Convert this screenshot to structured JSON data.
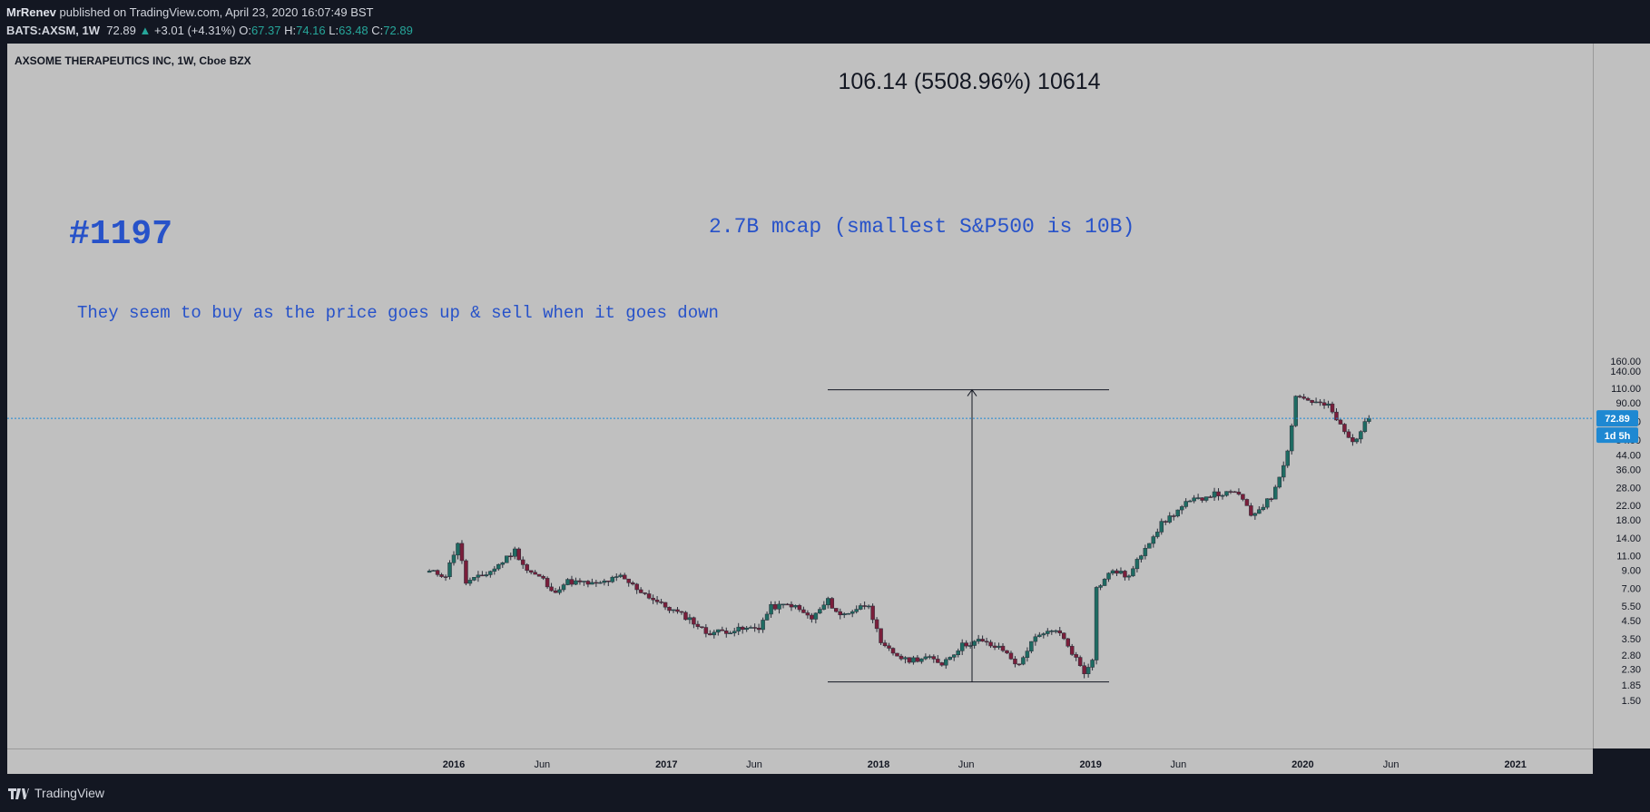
{
  "header": {
    "author": "MrRenev",
    "published": "published on TradingView.com, April 23, 2020 16:07:49 BST",
    "symbol": "BATS:AXSM, 1W",
    "last": "72.89",
    "change": "+3.01 (+4.31%)",
    "o_label": "O:",
    "o": "67.37",
    "h_label": "H:",
    "h": "74.16",
    "l_label": "L:",
    "l": "63.48",
    "c_label": "C:",
    "c": "72.89"
  },
  "chart_title": "AXSOME THERAPEUTICS INC, 1W, Cboe BZX",
  "annotations": {
    "tag": "#1197",
    "note": "They seem to buy as the price goes up & sell when it goes down",
    "mcap": "2.7B mcap (smallest S&P500 is 10B)",
    "measure": "106.14 (5508.96%) 10614"
  },
  "price_badge": {
    "price": "72.89",
    "countdown": "1d 5h"
  },
  "footer": {
    "brand": "TradingView"
  },
  "colors": {
    "up": "#1e6b62",
    "down": "#7a1e3a",
    "annotation": "#2752c9",
    "badge": "#1e88d2"
  },
  "chart_data": {
    "type": "candlestick",
    "title": "AXSOME THERAPEUTICS INC, 1W, Cboe BZX",
    "yscale": "log",
    "ylim": [
      1.3,
      165
    ],
    "yticks": [
      1.5,
      1.85,
      2.3,
      2.8,
      3.5,
      4.5,
      5.5,
      7.0,
      9.0,
      11.0,
      14.0,
      18.0,
      22.0,
      28.0,
      36.0,
      44.0,
      54.0,
      70.0,
      90.0,
      110.0,
      140.0,
      160.0
    ],
    "xticks": [
      "2016",
      "Jun",
      "2017",
      "Jun",
      "2018",
      "Jun",
      "2019",
      "Jun",
      "2020",
      "Jun",
      "2021"
    ],
    "last_price": 72.89,
    "measure": {
      "from": 1.93,
      "to": 108.07,
      "change": 106.14,
      "pct": 5508.96,
      "ticks": 10614
    },
    "anchors": [
      [
        "2015-11-20",
        8.8
      ],
      [
        "2015-12-18",
        8.4
      ],
      [
        "2016-01-08",
        13.2
      ],
      [
        "2016-01-22",
        7.6
      ],
      [
        "2016-02-19",
        8.3
      ],
      [
        "2016-03-11",
        9.2
      ],
      [
        "2016-04-15",
        11.8
      ],
      [
        "2016-05-06",
        9.0
      ],
      [
        "2016-06-03",
        7.9
      ],
      [
        "2016-06-17",
        6.6
      ],
      [
        "2016-07-15",
        7.7
      ],
      [
        "2016-09-02",
        7.4
      ],
      [
        "2016-10-14",
        8.2
      ],
      [
        "2016-11-11",
        7.0
      ],
      [
        "2016-12-23",
        5.6
      ],
      [
        "2017-02-10",
        4.6
      ],
      [
        "2017-03-10",
        3.8
      ],
      [
        "2017-05-19",
        4.0
      ],
      [
        "2017-06-09",
        4.1
      ],
      [
        "2017-06-30",
        5.4
      ],
      [
        "2017-08-04",
        5.6
      ],
      [
        "2017-09-08",
        4.6
      ],
      [
        "2017-10-06",
        5.9
      ],
      [
        "2017-10-27",
        4.8
      ],
      [
        "2017-12-15",
        5.7
      ],
      [
        "2018-01-05",
        3.2
      ],
      [
        "2018-02-16",
        2.6
      ],
      [
        "2018-03-23",
        2.7
      ],
      [
        "2018-04-20",
        2.5
      ],
      [
        "2018-05-25",
        3.2
      ],
      [
        "2018-06-22",
        3.4
      ],
      [
        "2018-08-03",
        3.0
      ],
      [
        "2018-08-31",
        2.4
      ],
      [
        "2018-09-21",
        3.4
      ],
      [
        "2018-11-02",
        4.0
      ],
      [
        "2018-11-23",
        3.2
      ],
      [
        "2018-12-21",
        2.2
      ],
      [
        "2019-01-04",
        2.7
      ],
      [
        "2019-01-11",
        7.0
      ],
      [
        "2019-02-08",
        9.0
      ],
      [
        "2019-03-08",
        8.2
      ],
      [
        "2019-04-05",
        12.5
      ],
      [
        "2019-05-03",
        17.0
      ],
      [
        "2019-06-14",
        22.5
      ],
      [
        "2019-07-26",
        25.5
      ],
      [
        "2019-09-13",
        26.0
      ],
      [
        "2019-10-04",
        19.0
      ],
      [
        "2019-11-08",
        24.5
      ],
      [
        "2019-12-06",
        46.0
      ],
      [
        "2019-12-20",
        100.0
      ],
      [
        "2020-01-17",
        92.0
      ],
      [
        "2020-02-14",
        86.0
      ],
      [
        "2020-03-13",
        60.0
      ],
      [
        "2020-03-27",
        52.0
      ],
      [
        "2020-04-10",
        62.0
      ],
      [
        "2020-04-24",
        72.89
      ]
    ]
  }
}
